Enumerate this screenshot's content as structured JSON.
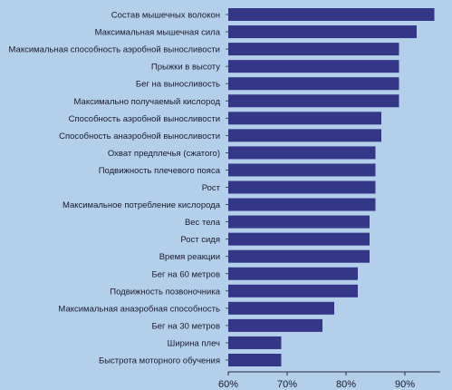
{
  "chart_data": {
    "type": "bar",
    "orientation": "horizontal",
    "title": "",
    "xlabel": "",
    "ylabel": "",
    "categories": [
      "Состав мышечных волокон",
      "Максимальная мышечная сила",
      "Максимальная способность аэробной выносливости",
      "Прыжки в высоту",
      "Бег на выносливость",
      "Максимально получаемый кислород",
      "Способность аэробной выносливости",
      "Способность анаэробной выносливости",
      "Охват предплечья (сжатого)",
      "Подвижность плечевого пояса",
      "Рост",
      "Максимальное потребление кислорода",
      "Вес тела",
      "Рост сидя",
      "Время реакции",
      "Бег на 60 метров",
      "Подвижность позвоночника",
      "Максимальная анаэробная способность",
      "Бег на 30 метров",
      "Ширина плеч",
      "Быстрота моторного обучения"
    ],
    "values": [
      95,
      92,
      89,
      89,
      89,
      89,
      86,
      86,
      85,
      85,
      85,
      85,
      84,
      84,
      84,
      82,
      82,
      78,
      76,
      69,
      69
    ],
    "xlim": [
      60,
      96
    ],
    "ticks": [
      "60%",
      "70%",
      "80%",
      "90%"
    ],
    "tick_values": [
      60,
      70,
      80,
      90
    ],
    "bar_color": "#343787",
    "background_color": "#b3cfe9",
    "grid": false,
    "legend": "none"
  }
}
